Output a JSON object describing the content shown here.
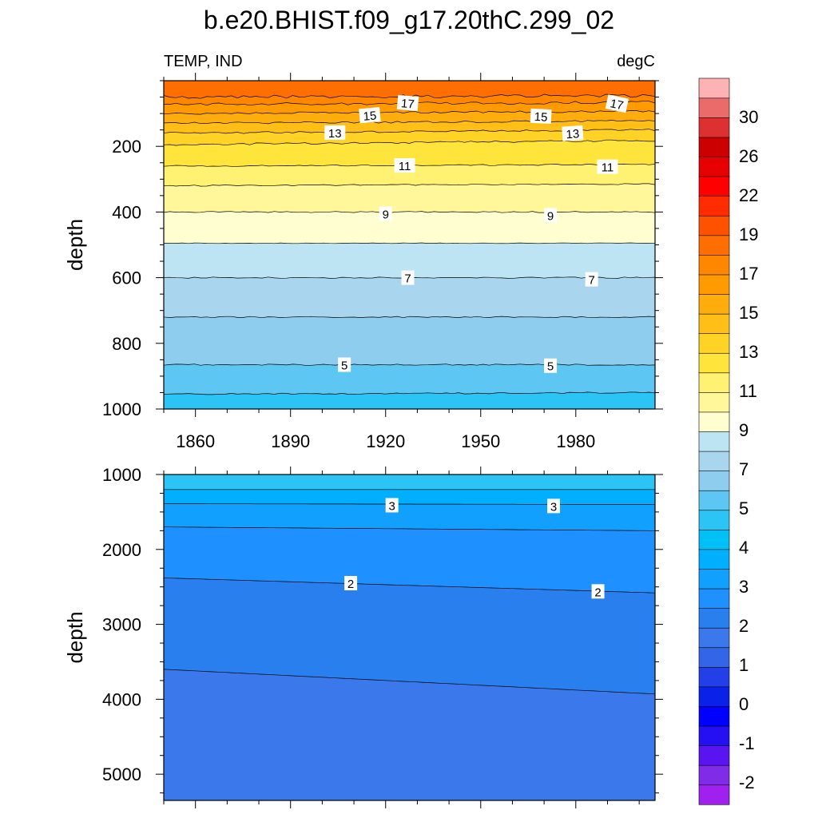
{
  "title": "b.e20.BHIST.f09_g17.20thC.299_02",
  "chart_data": {
    "type": "contour",
    "left_label": "TEMP, IND",
    "right_label": "degC",
    "x_range": [
      1850,
      2005
    ],
    "x_ticks": [
      1860,
      1890,
      1920,
      1950,
      1980
    ],
    "colorbar": {
      "levels": [
        -3,
        -2.5,
        -2,
        -1.5,
        -1,
        -0.5,
        0,
        0.5,
        1,
        1.5,
        2,
        2.5,
        3,
        3.5,
        4,
        4.5,
        5,
        6,
        7,
        8,
        9,
        10,
        11,
        12,
        13,
        14,
        15,
        16,
        17,
        18,
        19,
        20.5,
        22,
        24,
        26,
        28,
        30,
        32,
        34
      ],
      "labels": [
        "-2",
        "-1",
        "0",
        "1",
        "2",
        "3",
        "4",
        "5",
        "7",
        "9",
        "11",
        "13",
        "15",
        "17",
        "19",
        "22",
        "26",
        "30"
      ],
      "colors": [
        "#a020f0",
        "#7f2be8",
        "#5a14f0",
        "#2410f0",
        "#0000ff",
        "#0a22e8",
        "#2340e8",
        "#3366e6",
        "#3a78eb",
        "#2a7fee",
        "#1e90ff",
        "#12a0ff",
        "#00b0ff",
        "#00c0f6",
        "#2bc4f5",
        "#5ec6f2",
        "#8ecdee",
        "#a9d5ef",
        "#bce4f3",
        "#fffed0",
        "#fff79a",
        "#fff171",
        "#ffe43c",
        "#ffd226",
        "#ffbf17",
        "#ffad0c",
        "#ff9a00",
        "#ff8700",
        "#ff6e00",
        "#ff5200",
        "#ff2c00",
        "#ff0000",
        "#e60000",
        "#cc0000",
        "#dd3030",
        "#eb6b6b",
        "#ffb2b2"
      ]
    },
    "upper_panel": {
      "y_label": "depth",
      "y_range": [
        0,
        1000
      ],
      "y_ticks": [
        200,
        400,
        600,
        800,
        1000
      ],
      "contours": [
        {
          "value": 17,
          "depth_start": 50,
          "depth_end": 45,
          "wiggle": 5
        },
        {
          "value": 16,
          "depth_start": 72,
          "depth_end": 66,
          "wiggle": 4
        },
        {
          "value": 15,
          "depth_start": 100,
          "depth_end": 93,
          "wiggle": 3
        },
        {
          "value": 14,
          "depth_start": 130,
          "depth_end": 122,
          "wiggle": 3
        },
        {
          "value": 13,
          "depth_start": 160,
          "depth_end": 150,
          "wiggle": 3
        },
        {
          "value": 12,
          "depth_start": 195,
          "depth_end": 182,
          "wiggle": 3
        },
        {
          "value": 11,
          "depth_start": 260,
          "depth_end": 255,
          "wiggle": 2
        },
        {
          "value": 10,
          "depth_start": 320,
          "depth_end": 315,
          "wiggle": 2
        },
        {
          "value": 9,
          "depth_start": 400,
          "depth_end": 400,
          "wiggle": 2
        },
        {
          "value": 8,
          "depth_start": 495,
          "depth_end": 495,
          "wiggle": 1
        },
        {
          "value": 7,
          "depth_start": 600,
          "depth_end": 600,
          "wiggle": 2
        },
        {
          "value": 6,
          "depth_start": 720,
          "depth_end": 720,
          "wiggle": 2
        },
        {
          "value": 5,
          "depth_start": 865,
          "depth_end": 865,
          "wiggle": 2
        },
        {
          "value": 4.5,
          "depth_start": 955,
          "depth_end": 950,
          "wiggle": 2
        }
      ],
      "contour_labels": [
        {
          "text": "17",
          "year": 1927,
          "depth": 68,
          "angle": 5
        },
        {
          "text": "17",
          "year": 1993,
          "depth": 70,
          "angle": 12
        },
        {
          "text": "15",
          "year": 1915,
          "depth": 105,
          "angle": -5
        },
        {
          "text": "15",
          "year": 1969,
          "depth": 108,
          "angle": 3
        },
        {
          "text": "13",
          "year": 1904,
          "depth": 158,
          "angle": 0
        },
        {
          "text": "13",
          "year": 1979,
          "depth": 160,
          "angle": -4
        },
        {
          "text": "11",
          "year": 1926,
          "depth": 258,
          "angle": 0
        },
        {
          "text": "11",
          "year": 1990,
          "depth": 262,
          "angle": 0
        },
        {
          "text": "9",
          "year": 1920,
          "depth": 405,
          "angle": 0
        },
        {
          "text": "9",
          "year": 1972,
          "depth": 410,
          "angle": 0
        },
        {
          "text": "7",
          "year": 1927,
          "depth": 600,
          "angle": 0
        },
        {
          "text": "7",
          "year": 1985,
          "depth": 605,
          "angle": 0
        },
        {
          "text": "5",
          "year": 1907,
          "depth": 865,
          "angle": 0
        },
        {
          "text": "5",
          "year": 1972,
          "depth": 868,
          "angle": 0
        }
      ]
    },
    "lower_panel": {
      "y_label": "depth",
      "y_range": [
        1000,
        5350
      ],
      "y_ticks": [
        1000,
        2000,
        3000,
        4000,
        5000
      ],
      "contours": [
        {
          "value": 3.5,
          "depth_start": 1200,
          "depth_end": 1200,
          "wiggle": 0
        },
        {
          "value": 3,
          "depth_start": 1390,
          "depth_end": 1400,
          "wiggle": 0
        },
        {
          "value": 2.5,
          "depth_start": 1700,
          "depth_end": 1750,
          "wiggle": 0
        },
        {
          "value": 2,
          "depth_start": 2380,
          "depth_end": 2580,
          "wiggle": 0
        },
        {
          "value": 1.5,
          "depth_start": 3600,
          "depth_end": 3930,
          "wiggle": 0
        }
      ],
      "contour_labels": [
        {
          "text": "3",
          "year": 1922,
          "depth": 1410,
          "angle": 0
        },
        {
          "text": "3",
          "year": 1973,
          "depth": 1420,
          "angle": 0
        },
        {
          "text": "2",
          "year": 1909,
          "depth": 2450,
          "angle": 0
        },
        {
          "text": "2",
          "year": 1987,
          "depth": 2560,
          "angle": 0
        }
      ]
    }
  }
}
